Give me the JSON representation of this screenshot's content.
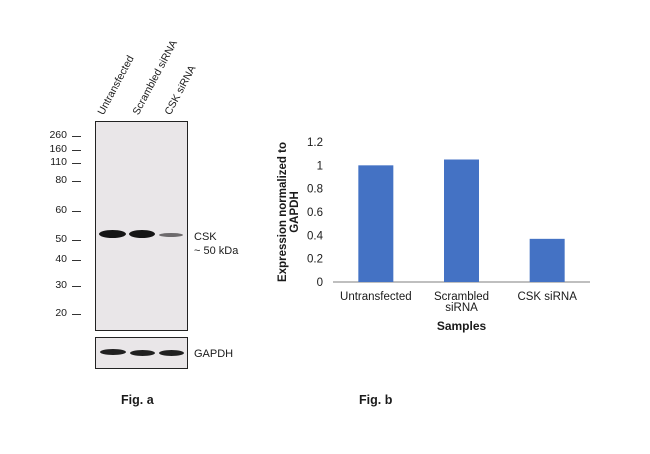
{
  "figure_a": {
    "lanes": [
      "Untransfected",
      "Scrambled siRNA",
      "CSK siRNA"
    ],
    "mw_markers": [
      "260",
      "160",
      "110",
      "80",
      "60",
      "50",
      "40",
      "30",
      "20"
    ],
    "target_label": "CSK",
    "target_size": "~ 50 kDa",
    "loading_control": "GAPDH",
    "caption": "Fig. a",
    "colors": {
      "blot_background": "#e9e6e8",
      "band": "#151515"
    }
  },
  "figure_b": {
    "caption": "Fig. b"
  },
  "chart_data": {
    "type": "bar",
    "title": "",
    "categories": [
      "Untransfected",
      "Scrambled siRNA",
      "CSK siRNA"
    ],
    "category_lines": [
      [
        "Untransfected"
      ],
      [
        "Scrambled",
        "siRNA"
      ],
      [
        "CSK siRNA"
      ]
    ],
    "values": [
      1.0,
      1.05,
      0.37
    ],
    "xlabel": "Samples",
    "ylabel_lines": [
      "Expression normalized to",
      "GAPDH"
    ],
    "ylim": [
      0,
      1.2
    ],
    "yticks": [
      "0",
      "0.2",
      "0.4",
      "0.6",
      "0.8",
      "1",
      "1.2"
    ],
    "grid": false,
    "legend": "none",
    "bar_color": "#4472c4"
  }
}
